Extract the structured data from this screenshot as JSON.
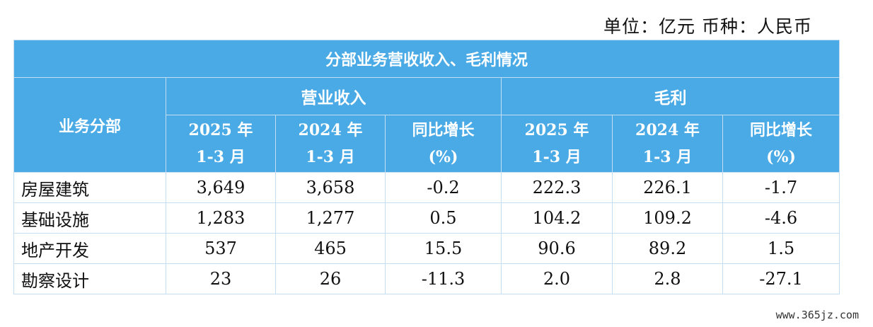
{
  "unit_text": "单位：亿元 币种：人民币",
  "table": {
    "title": "分部业务营收收入、毛利情况",
    "dept_header": "业务分部",
    "revenue_header": "营业收入",
    "profit_header": "毛利",
    "subheaders": [
      {
        "line1": "2025 年",
        "line2": "1-3 月"
      },
      {
        "line1": "2024 年",
        "line2": "1-3 月"
      },
      {
        "line1": "同比增长",
        "line2": "(%)"
      },
      {
        "line1": "2025 年",
        "line2": "1-3 月"
      },
      {
        "line1": "2024 年",
        "line2": "1-3 月"
      },
      {
        "line1": "同比增长",
        "line2": "(%)"
      }
    ],
    "rows": [
      {
        "name": "房屋建筑",
        "rev_2025": "3,649",
        "rev_2024": "3,658",
        "rev_yoy": "-0.2",
        "gp_2025": "222.3",
        "gp_2024": "226.1",
        "gp_yoy": "-1.7"
      },
      {
        "name": "基础设施",
        "rev_2025": "1,283",
        "rev_2024": "1,277",
        "rev_yoy": "0.5",
        "gp_2025": "104.2",
        "gp_2024": "109.2",
        "gp_yoy": "-4.6"
      },
      {
        "name": "地产开发",
        "rev_2025": "537",
        "rev_2024": "465",
        "rev_yoy": "15.5",
        "gp_2025": "90.6",
        "gp_2024": "89.2",
        "gp_yoy": "1.5"
      },
      {
        "name": "勘察设计",
        "rev_2025": "23",
        "rev_2024": "26",
        "rev_yoy": "-11.3",
        "gp_2025": "2.0",
        "gp_2024": "2.8",
        "gp_yoy": "-27.1"
      }
    ]
  },
  "watermark": "www.365jz.com",
  "colors": {
    "header_bg": "#4aaae6",
    "header_text": "#ffffff",
    "border": "#c5ddf0"
  }
}
